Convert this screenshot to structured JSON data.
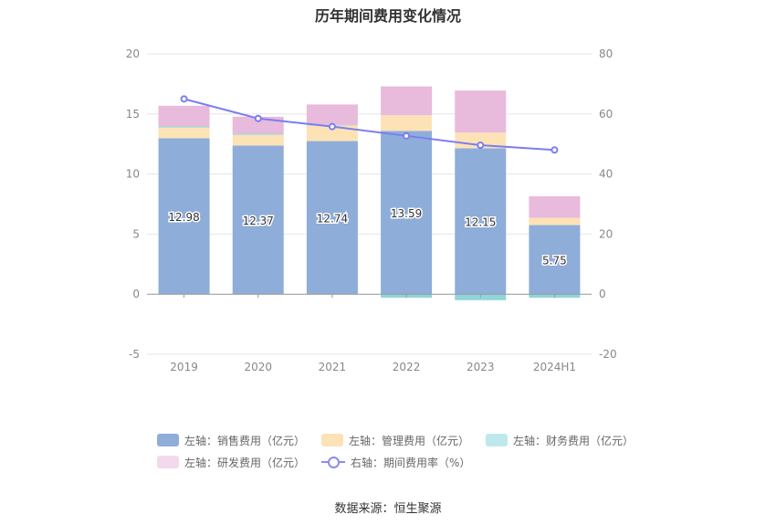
{
  "chart_data": {
    "type": "bar",
    "title": "历年期间费用变化情况",
    "categories": [
      "2019",
      "2020",
      "2021",
      "2022",
      "2023",
      "2024H1"
    ],
    "ylim_left": [
      -5,
      20
    ],
    "yticks_left": [
      "20",
      "15",
      "10",
      "5",
      "0",
      "-5"
    ],
    "ylim_right": [
      -20,
      80
    ],
    "yticks_right": [
      "80",
      "60",
      "40",
      "20",
      "0",
      "-20"
    ],
    "series": [
      {
        "name": "左轴：销售费用（亿元）",
        "axis": "left",
        "kind": "bar",
        "color": "#8eadd9",
        "values": [
          12.98,
          12.37,
          12.74,
          13.59,
          12.15,
          5.75
        ]
      },
      {
        "name": "左轴：管理费用（亿元）",
        "axis": "left",
        "kind": "bar",
        "color": "#fde2b6",
        "values": [
          0.9,
          0.9,
          1.3,
          1.3,
          1.3,
          0.6
        ]
      },
      {
        "name": "左轴：财务费用（亿元）",
        "axis": "left",
        "kind": "bar",
        "color": "#8fd5dc",
        "values": [
          0.1,
          0.1,
          0.05,
          -0.3,
          -0.5,
          -0.3
        ]
      },
      {
        "name": "左轴：研发费用（亿元）",
        "axis": "left",
        "kind": "bar",
        "color": "#e8badb",
        "values": [
          1.7,
          1.4,
          1.7,
          2.4,
          3.5,
          1.8
        ]
      },
      {
        "name": "右轴：期间费用率（%）",
        "axis": "right",
        "kind": "line",
        "color": "#7b7ef0",
        "values": [
          65.0,
          58.5,
          55.8,
          52.7,
          49.6,
          48.0
        ]
      }
    ],
    "data_labels": [
      "12.98",
      "12.37",
      "12.74",
      "13.59",
      "12.15",
      "5.75"
    ],
    "grid": true,
    "legend_position": "bottom"
  },
  "legend": [
    {
      "label": "左轴：销售费用（亿元）",
      "color": "#8eadd9",
      "type": "bar"
    },
    {
      "label": "左轴：管理费用（亿元）",
      "color": "#fde2b6",
      "type": "bar"
    },
    {
      "label": "左轴：财务费用（亿元）",
      "color": "#bfe8ec",
      "type": "bar"
    },
    {
      "label": "左轴：研发费用（亿元）",
      "color": "#f3d9ec",
      "type": "bar"
    },
    {
      "label": "右轴：期间费用率（%）",
      "color": "#7b7ef0",
      "type": "line"
    }
  ],
  "source": "数据来源：恒生聚源"
}
